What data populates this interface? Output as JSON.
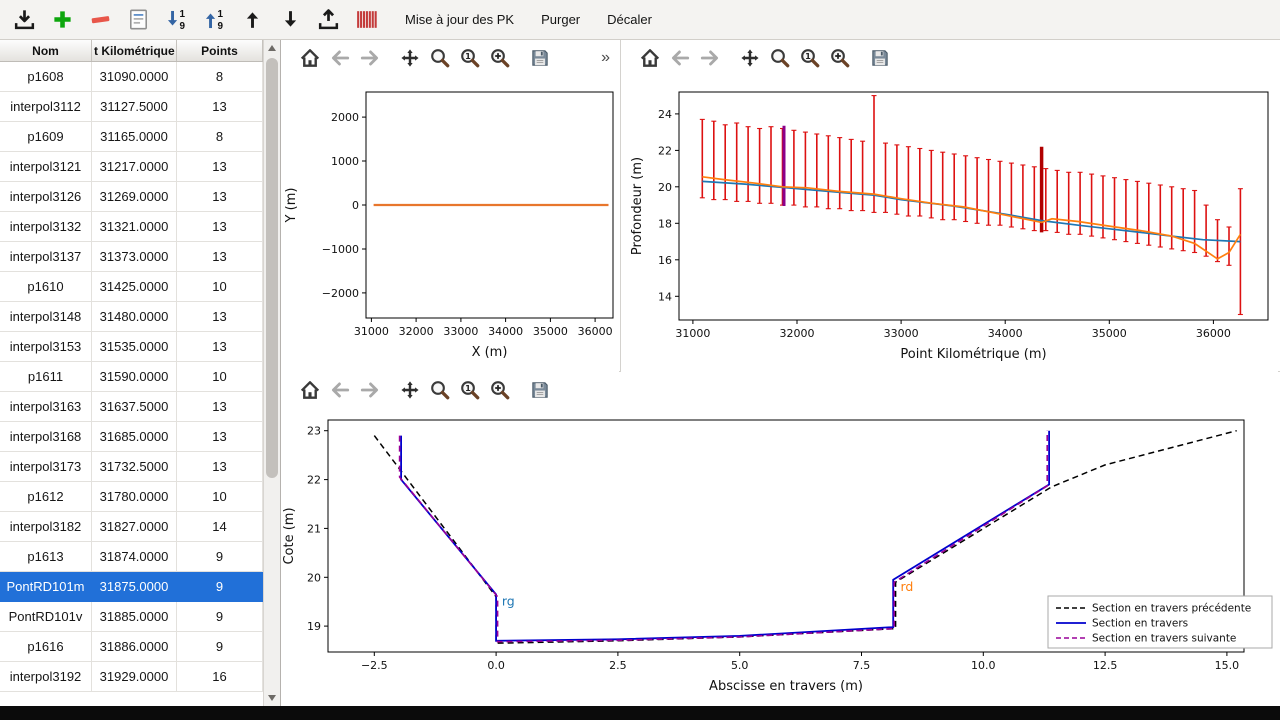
{
  "toolbar": {
    "icon_buttons": [
      "import",
      "add",
      "remove",
      "edit-list",
      "sort-ascending",
      "sort-descending",
      "move-up",
      "move-down",
      "export",
      "sections"
    ],
    "text_buttons": [
      "Mise à jour des PK",
      "Purger",
      "Décaler"
    ]
  },
  "table": {
    "columns": [
      "Nom",
      "t Kilométrique",
      "Points"
    ],
    "selected_row": "PontRD101m",
    "rows": [
      [
        "p1608",
        "31090.0000",
        "8"
      ],
      [
        "interpol3112",
        "31127.5000",
        "13"
      ],
      [
        "p1609",
        "31165.0000",
        "8"
      ],
      [
        "interpol3121",
        "31217.0000",
        "13"
      ],
      [
        "interpol3126",
        "31269.0000",
        "13"
      ],
      [
        "interpol3132",
        "31321.0000",
        "13"
      ],
      [
        "interpol3137",
        "31373.0000",
        "13"
      ],
      [
        "p1610",
        "31425.0000",
        "10"
      ],
      [
        "interpol3148",
        "31480.0000",
        "13"
      ],
      [
        "interpol3153",
        "31535.0000",
        "13"
      ],
      [
        "p1611",
        "31590.0000",
        "10"
      ],
      [
        "interpol3163",
        "31637.5000",
        "13"
      ],
      [
        "interpol3168",
        "31685.0000",
        "13"
      ],
      [
        "interpol3173",
        "31732.5000",
        "13"
      ],
      [
        "p1612",
        "31780.0000",
        "10"
      ],
      [
        "interpol3182",
        "31827.0000",
        "14"
      ],
      [
        "p1613",
        "31874.0000",
        "9"
      ],
      [
        "PontRD101m",
        "31875.0000",
        "9"
      ],
      [
        "PontRD101v",
        "31885.0000",
        "9"
      ],
      [
        "p1616",
        "31886.0000",
        "9"
      ],
      [
        "interpol3192",
        "31929.0000",
        "16"
      ]
    ]
  },
  "plot_toolbar": {
    "icons": [
      "home",
      "back",
      "forward",
      "pan",
      "zoom",
      "zoom-one",
      "zoom-plus",
      "save"
    ],
    "overflow_label": "»"
  },
  "chart_data": [
    {
      "name": "plan-view",
      "type": "line",
      "xlabel": "X (m)",
      "ylabel": "Y (m)",
      "xlim": [
        30880,
        36400
      ],
      "ylim": [
        -2570,
        2570
      ],
      "xticks": [
        31000,
        32000,
        33000,
        34000,
        35000,
        36000
      ],
      "xtick_labels": [
        "31000",
        "32000",
        "33000",
        "34000",
        "35000",
        "36000"
      ],
      "yticks": [
        2000,
        1000,
        0,
        -1000,
        -2000
      ],
      "ytick_labels": [
        "2000",
        "1000",
        "0",
        "−1000",
        "−2000"
      ],
      "series": [
        {
          "name": "axe-hydraulique",
          "color": "#e8762c",
          "width": 2.2,
          "x": [
            31050,
            36300
          ],
          "y": [
            0,
            0
          ]
        }
      ]
    },
    {
      "name": "profil-en-long",
      "type": "line+bars",
      "xlabel": "Point Kilométrique (m)",
      "ylabel": "Profondeur (m)",
      "xlim": [
        30866,
        36525
      ],
      "ylim": [
        12.7,
        25.2
      ],
      "xticks": [
        31000,
        32000,
        33000,
        34000,
        35000,
        36000
      ],
      "xtick_labels": [
        "31000",
        "32000",
        "33000",
        "34000",
        "35000",
        "36000"
      ],
      "yticks": [
        14,
        16,
        18,
        20,
        22,
        24
      ],
      "ytick_labels": [
        "14",
        "16",
        "18",
        "20",
        "22",
        "24"
      ],
      "bars": {
        "color": "#dd1111",
        "data": [
          [
            31090,
            19.4,
            23.7
          ],
          [
            31200,
            19.3,
            23.6
          ],
          [
            31310,
            19.3,
            23.4
          ],
          [
            31420,
            19.2,
            23.5
          ],
          [
            31530,
            19.2,
            23.3
          ],
          [
            31640,
            19.1,
            23.2
          ],
          [
            31750,
            19.1,
            23.3
          ],
          [
            31860,
            19.0,
            23.2
          ],
          [
            31970,
            19.0,
            23.1
          ],
          [
            32080,
            18.9,
            23.0
          ],
          [
            32190,
            18.9,
            22.9
          ],
          [
            32300,
            18.8,
            22.8
          ],
          [
            32410,
            18.8,
            22.7
          ],
          [
            32520,
            18.7,
            22.6
          ],
          [
            32630,
            18.7,
            22.5
          ],
          [
            32740,
            18.6,
            25.0
          ],
          [
            32850,
            18.6,
            22.4
          ],
          [
            32960,
            18.5,
            22.3
          ],
          [
            33070,
            18.4,
            22.2
          ],
          [
            33180,
            18.4,
            22.1
          ],
          [
            33290,
            18.3,
            22.0
          ],
          [
            33400,
            18.2,
            21.9
          ],
          [
            33510,
            18.2,
            21.8
          ],
          [
            33620,
            18.1,
            21.7
          ],
          [
            33730,
            18.0,
            21.6
          ],
          [
            33840,
            17.9,
            21.5
          ],
          [
            33950,
            17.9,
            21.4
          ],
          [
            34060,
            17.8,
            21.3
          ],
          [
            34170,
            17.7,
            21.2
          ],
          [
            34280,
            17.6,
            21.1
          ],
          [
            34390,
            17.6,
            21.0
          ],
          [
            34500,
            17.5,
            20.9
          ],
          [
            34610,
            17.4,
            20.8
          ],
          [
            34720,
            17.4,
            20.8
          ],
          [
            34830,
            17.3,
            20.7
          ],
          [
            34940,
            17.2,
            20.6
          ],
          [
            35050,
            17.1,
            20.5
          ],
          [
            35160,
            17.0,
            20.4
          ],
          [
            35270,
            16.9,
            20.3
          ],
          [
            35380,
            16.8,
            20.2
          ],
          [
            35490,
            16.7,
            20.1
          ],
          [
            35600,
            16.6,
            20.0
          ],
          [
            35710,
            16.5,
            19.9
          ],
          [
            35820,
            16.4,
            19.8
          ],
          [
            35930,
            16.2,
            19.0
          ],
          [
            36040,
            15.9,
            18.2
          ],
          [
            36150,
            15.7,
            17.8
          ],
          [
            36260,
            13.0,
            19.9
          ]
        ]
      },
      "markers": [
        {
          "x": 31875,
          "y0": 18.95,
          "y1": 23.35,
          "color": "#8b008b",
          "width": 3
        },
        {
          "x": 34350,
          "y0": 17.5,
          "y1": 22.2,
          "color": "#b00000",
          "width": 3.5
        }
      ],
      "series": [
        {
          "name": "serie-bleue",
          "color": "#1f77b4",
          "width": 1.7,
          "x": [
            31090,
            31500,
            32000,
            32500,
            32740,
            33000,
            33500,
            34000,
            34350,
            34700,
            35000,
            35300,
            35600,
            35900,
            36260
          ],
          "y": [
            20.3,
            20.15,
            19.9,
            19.65,
            19.55,
            19.3,
            18.95,
            18.5,
            18.15,
            17.9,
            17.7,
            17.5,
            17.3,
            17.1,
            17.0
          ]
        },
        {
          "name": "serie-orange",
          "color": "#ff7f0e",
          "width": 1.7,
          "x": [
            31090,
            31300,
            31600,
            31860,
            32100,
            32400,
            32740,
            33000,
            33300,
            33600,
            34000,
            34350,
            34450,
            34700,
            35000,
            35300,
            35600,
            35820,
            36040,
            36150,
            36260
          ],
          "y": [
            20.55,
            20.4,
            20.2,
            20.0,
            19.95,
            19.75,
            19.6,
            19.35,
            19.1,
            18.9,
            18.45,
            18.05,
            18.25,
            18.1,
            17.85,
            17.6,
            17.3,
            16.9,
            16.05,
            16.4,
            17.4
          ]
        }
      ]
    },
    {
      "name": "section-en-travers",
      "type": "line",
      "xlabel": "Abscisse en travers (m)",
      "ylabel": "Cote (m)",
      "xlim": [
        -3.45,
        15.35
      ],
      "ylim": [
        18.47,
        23.22
      ],
      "xticks": [
        -2.5,
        0,
        2.5,
        5,
        7.5,
        10,
        12.5,
        15
      ],
      "xtick_labels": [
        "−2.5",
        "0.0",
        "2.5",
        "5.0",
        "7.5",
        "10.0",
        "12.5",
        "15.0"
      ],
      "yticks": [
        19,
        20,
        21,
        22,
        23
      ],
      "ytick_labels": [
        "19",
        "20",
        "21",
        "22",
        "23"
      ],
      "series": [
        {
          "name": "Section en travers précédente",
          "color": "#000000",
          "width": 1.5,
          "dash": "6 4",
          "x": [
            -2.5,
            0.0,
            0.0,
            2.5,
            5.0,
            8.2,
            8.2,
            11.4,
            12.5,
            15.2
          ],
          "y": [
            22.9,
            19.6,
            18.65,
            18.7,
            18.78,
            18.95,
            19.9,
            21.85,
            22.3,
            23.0
          ]
        },
        {
          "name": "Section en travers",
          "color": "#0000cd",
          "width": 1.8,
          "dash": null,
          "x": [
            -1.95,
            -1.95,
            0.0,
            0.0,
            2.5,
            5.0,
            8.15,
            8.15,
            11.35,
            11.35
          ],
          "y": [
            22.9,
            22.0,
            19.65,
            18.7,
            18.73,
            18.8,
            18.98,
            19.95,
            21.9,
            23.0
          ]
        },
        {
          "name": "Section en travers suivante",
          "color": "#990099",
          "width": 1.6,
          "dash": "6 4",
          "x": [
            -1.98,
            -1.98,
            0.03,
            0.03,
            2.5,
            5.0,
            8.17,
            8.17,
            11.31,
            11.31
          ],
          "y": [
            22.9,
            22.05,
            19.6,
            18.68,
            18.71,
            18.78,
            18.95,
            19.9,
            21.87,
            23.0
          ]
        }
      ],
      "annotations": [
        {
          "text": "rg",
          "x": 0.12,
          "y": 19.42,
          "color": "#1f77b4"
        },
        {
          "text": "rd",
          "x": 8.3,
          "y": 19.72,
          "color": "#ff7f0e"
        }
      ],
      "legend": {
        "position": "lower right",
        "entries": [
          {
            "label": "Section en travers précédente",
            "color": "#000000",
            "dash": "5 3",
            "width": 1.5
          },
          {
            "label": "Section en travers",
            "color": "#0000cd",
            "dash": null,
            "width": 1.8
          },
          {
            "label": "Section en travers suivante",
            "color": "#990099",
            "dash": "5 3",
            "width": 1.6
          }
        ]
      }
    }
  ]
}
